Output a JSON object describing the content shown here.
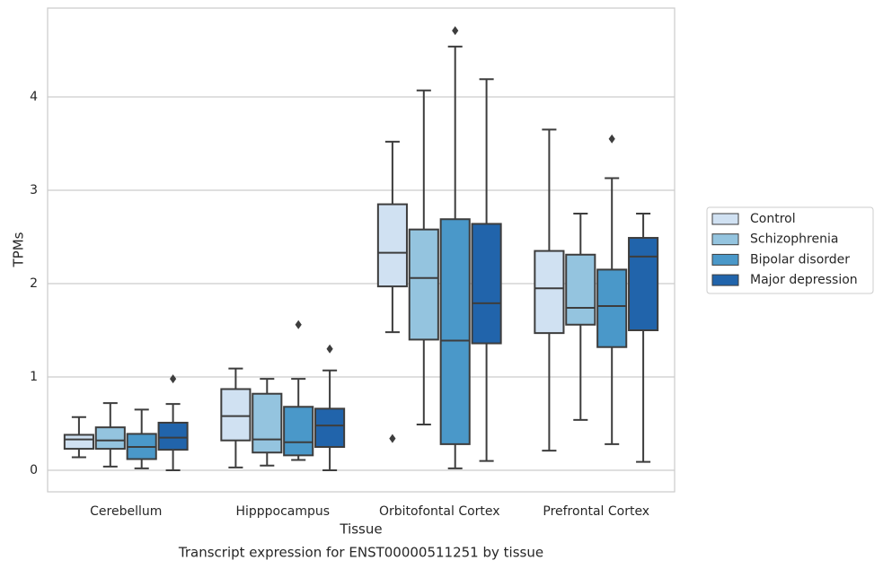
{
  "chart_data": {
    "type": "boxplot",
    "title": "",
    "xlabel": "Tissue",
    "ylabel": "TPMs",
    "caption": "Transcript expression for ENST00000511251 by tissue",
    "ylim": [
      -0.22,
      4.95
    ],
    "yticks": [
      0,
      1,
      2,
      3,
      4
    ],
    "ytick_labels": [
      "0",
      "1",
      "2",
      "3",
      "4"
    ],
    "grid": "horizontal",
    "legend_position": "right",
    "categories": [
      "Cerebellum",
      "Hipppocampus",
      "Orbitofontal Cortex",
      "Prefrontal Cortex"
    ],
    "series": [
      {
        "name": "Control",
        "color": "#d0e1f2",
        "boxes": [
          {
            "whislo": 0.14,
            "q1": 0.23,
            "med": 0.33,
            "q3": 0.38,
            "whishi": 0.57,
            "fliers": []
          },
          {
            "whislo": 0.03,
            "q1": 0.32,
            "med": 0.58,
            "q3": 0.87,
            "whishi": 1.09,
            "fliers": []
          },
          {
            "whislo": 1.48,
            "q1": 1.97,
            "med": 2.33,
            "q3": 2.85,
            "whishi": 3.52,
            "fliers": [
              0.34
            ]
          },
          {
            "whislo": 0.21,
            "q1": 1.47,
            "med": 1.95,
            "q3": 2.35,
            "whishi": 3.65,
            "fliers": []
          }
        ]
      },
      {
        "name": "Schizophrenia",
        "color": "#94c4df",
        "boxes": [
          {
            "whislo": 0.04,
            "q1": 0.23,
            "med": 0.32,
            "q3": 0.46,
            "whishi": 0.72,
            "fliers": []
          },
          {
            "whislo": 0.05,
            "q1": 0.19,
            "med": 0.33,
            "q3": 0.82,
            "whishi": 0.98,
            "fliers": []
          },
          {
            "whislo": 0.49,
            "q1": 1.4,
            "med": 2.06,
            "q3": 2.58,
            "whishi": 4.07,
            "fliers": []
          },
          {
            "whislo": 0.54,
            "q1": 1.56,
            "med": 1.74,
            "q3": 2.31,
            "whishi": 2.75,
            "fliers": []
          }
        ]
      },
      {
        "name": "Bipolar disorder",
        "color": "#4a98c9",
        "boxes": [
          {
            "whislo": 0.02,
            "q1": 0.12,
            "med": 0.25,
            "q3": 0.39,
            "whishi": 0.65,
            "fliers": []
          },
          {
            "whislo": 0.11,
            "q1": 0.16,
            "med": 0.3,
            "q3": 0.68,
            "whishi": 0.98,
            "fliers": [
              1.56
            ]
          },
          {
            "whislo": 0.02,
            "q1": 0.28,
            "med": 1.39,
            "q3": 2.69,
            "whishi": 4.54,
            "fliers": [
              4.71
            ]
          },
          {
            "whislo": 0.28,
            "q1": 1.32,
            "med": 1.76,
            "q3": 2.15,
            "whishi": 3.13,
            "fliers": [
              3.55
            ]
          }
        ]
      },
      {
        "name": "Major depression",
        "color": "#2164ab",
        "boxes": [
          {
            "whislo": 0.0,
            "q1": 0.22,
            "med": 0.35,
            "q3": 0.51,
            "whishi": 0.71,
            "fliers": [
              0.98
            ]
          },
          {
            "whislo": 0.0,
            "q1": 0.25,
            "med": 0.48,
            "q3": 0.66,
            "whishi": 1.07,
            "fliers": [
              1.3
            ]
          },
          {
            "whislo": 0.1,
            "q1": 1.36,
            "med": 1.79,
            "q3": 2.64,
            "whishi": 4.19,
            "fliers": []
          },
          {
            "whislo": 0.09,
            "q1": 1.5,
            "med": 2.29,
            "q3": 2.49,
            "whishi": 2.75,
            "fliers": []
          }
        ]
      }
    ]
  }
}
